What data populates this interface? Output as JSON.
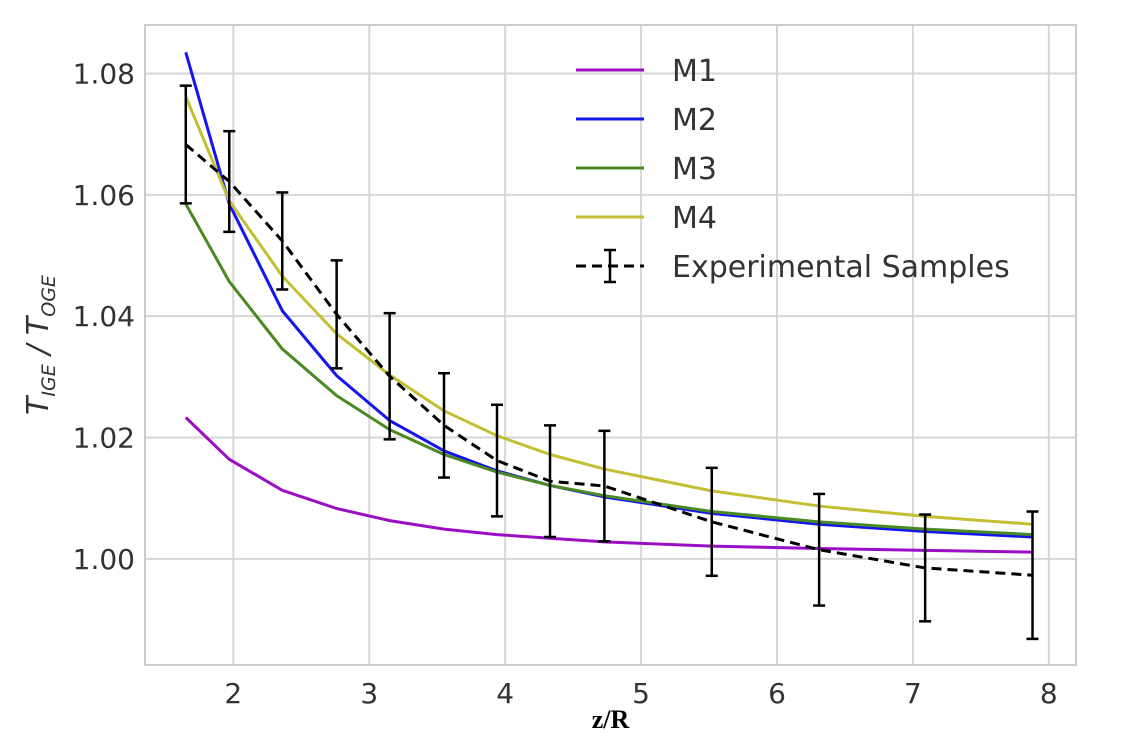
{
  "chart_data": {
    "type": "line",
    "xlabel": "z/R",
    "ylabel": {
      "main1": "T",
      "sub1": "IGE",
      "sep": " / ",
      "main2": "T",
      "sub2": "OGE"
    },
    "xlim": [
      1.35,
      8.2
    ],
    "ylim": [
      0.9825,
      1.088
    ],
    "xticks": [
      2,
      3,
      4,
      5,
      6,
      7,
      8
    ],
    "xtick_labels": [
      "2",
      "3",
      "4",
      "5",
      "6",
      "7",
      "8"
    ],
    "yticks": [
      1.0,
      1.02,
      1.04,
      1.06,
      1.08
    ],
    "ytick_labels": [
      "1.00",
      "1.02",
      "1.04",
      "1.06",
      "1.08"
    ],
    "grid": true,
    "legend_position": "top-right",
    "series": [
      {
        "name": "M1",
        "color": "#9a0fc4",
        "style": "solid",
        "x": [
          1.65,
          1.97,
          2.36,
          2.76,
          3.15,
          3.55,
          3.94,
          4.33,
          4.73,
          5.52,
          6.31,
          7.09,
          7.88
        ],
        "y": [
          1.0233,
          1.0164,
          1.0113,
          1.0083,
          1.0063,
          1.0049,
          1.004,
          1.0034,
          1.0028,
          1.0021,
          1.0017,
          1.0014,
          1.0011
        ]
      },
      {
        "name": "M2",
        "color": "#1515f0",
        "style": "solid",
        "x": [
          1.65,
          1.97,
          2.36,
          2.76,
          3.15,
          3.55,
          3.94,
          4.33,
          4.73,
          5.52,
          6.31,
          7.09,
          7.88
        ],
        "y": [
          1.0835,
          1.0585,
          1.0409,
          1.0302,
          1.0228,
          1.0178,
          1.0145,
          1.0121,
          1.0102,
          1.0075,
          1.0057,
          1.0045,
          1.0036
        ]
      },
      {
        "name": "M3",
        "color": "#4a8a22",
        "style": "solid",
        "x": [
          1.65,
          1.97,
          2.36,
          2.76,
          3.15,
          3.55,
          3.94,
          4.33,
          4.73,
          5.52,
          6.31,
          7.09,
          7.88
        ],
        "y": [
          1.0585,
          1.0457,
          1.0346,
          1.0269,
          1.0213,
          1.0172,
          1.0143,
          1.0121,
          1.0104,
          1.0078,
          1.0061,
          1.0049,
          1.004
        ]
      },
      {
        "name": "M4",
        "color": "#c2bf33",
        "style": "solid",
        "x": [
          1.65,
          1.97,
          2.36,
          2.76,
          3.15,
          3.55,
          3.94,
          4.33,
          4.73,
          5.52,
          6.31,
          7.09,
          7.88
        ],
        "y": [
          1.0762,
          1.059,
          1.0466,
          1.0371,
          1.0303,
          1.0244,
          1.0203,
          1.0172,
          1.0148,
          1.0112,
          1.0087,
          1.007,
          1.0057
        ]
      }
    ],
    "experimental": {
      "name": "Experimental Samples",
      "color": "#000000",
      "style": "dashed",
      "x": [
        1.65,
        1.97,
        2.36,
        2.76,
        3.15,
        3.55,
        3.94,
        4.33,
        4.73,
        5.52,
        6.31,
        7.09,
        7.88
      ],
      "y": [
        1.0683,
        1.0622,
        1.0524,
        1.0403,
        1.0301,
        1.022,
        1.0162,
        1.0128,
        1.012,
        1.0061,
        1.0015,
        0.9985,
        0.9973
      ],
      "err": [
        0.0097,
        0.0083,
        0.008,
        0.0089,
        0.0104,
        0.0086,
        0.0092,
        0.0092,
        0.0091,
        0.0089,
        0.0092,
        0.0088,
        0.0105
      ]
    }
  }
}
